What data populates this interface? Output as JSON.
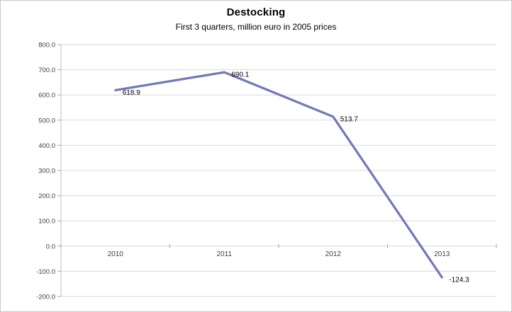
{
  "chart_data": {
    "type": "line",
    "title": "Destocking",
    "subtitle": "First 3 quarters, million euro in 2005 prices",
    "categories": [
      "2010",
      "2011",
      "2012",
      "2013"
    ],
    "series": [
      {
        "name": "Destocking",
        "values": [
          618.9,
          690.1,
          513.7,
          -124.3
        ],
        "data_labels": [
          "618.9",
          "690.1",
          "513.7",
          "-124.3"
        ]
      }
    ],
    "xlabel": "",
    "ylabel": "",
    "ylim": [
      -200,
      800
    ],
    "y_tick_step": 100,
    "y_ticks": [
      800,
      700,
      600,
      500,
      400,
      300,
      200,
      100,
      0,
      -100,
      -200
    ],
    "y_tick_labels": [
      "800.0",
      "700.0",
      "600.0",
      "500.0",
      "400.0",
      "300.0",
      "200.0",
      "100.0",
      "0.0",
      "-100.0",
      "-200.0"
    ],
    "grid": true,
    "legend": "none",
    "colors": {
      "line": "#7277b9",
      "grid": "#d9d9d9",
      "axis": "#bfbfbf",
      "tick": "#a6a6a6",
      "label_text": "#404040",
      "title_text": "#000000"
    }
  }
}
